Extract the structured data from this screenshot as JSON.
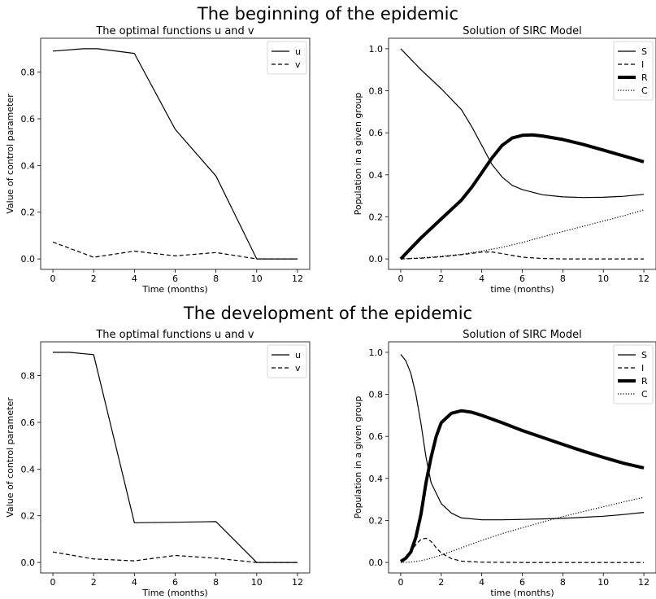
{
  "suptitles": [
    "The beginning of the epidemic",
    "The development of the epidemic"
  ],
  "chart_data": [
    {
      "type": "line",
      "title": "The optimal functions u and v",
      "xlabel": "Time (months)",
      "ylabel": "Value of control parameter",
      "xlim": [
        -0.6,
        12.6
      ],
      "ylim": [
        -0.045,
        0.945
      ],
      "xticks": [
        0,
        2,
        4,
        6,
        8,
        10,
        12
      ],
      "yticks": [
        0.0,
        0.2,
        0.4,
        0.6,
        0.8
      ],
      "legend_position": "top-right",
      "grid": false,
      "series": [
        {
          "name": "u",
          "style": "solid",
          "width": 1.2,
          "x": [
            0,
            1.5,
            2.2,
            4,
            6,
            8,
            10,
            11,
            12
          ],
          "y": [
            0.89,
            0.9,
            0.9,
            0.88,
            0.555,
            0.355,
            0.0,
            0.0,
            0.0
          ]
        },
        {
          "name": "v",
          "style": "dashed",
          "width": 1.2,
          "x": [
            0,
            2,
            4,
            6,
            8,
            10,
            12
          ],
          "y": [
            0.072,
            0.007,
            0.033,
            0.013,
            0.027,
            0.0,
            0.0
          ]
        }
      ]
    },
    {
      "type": "line",
      "title": "Solution of SIRC Model",
      "xlabel": "time (months)",
      "ylabel": "Population in a given group",
      "xlim": [
        -0.6,
        12.6
      ],
      "ylim": [
        -0.05,
        1.05
      ],
      "xticks": [
        0,
        2,
        4,
        6,
        8,
        10,
        12
      ],
      "yticks": [
        0.0,
        0.2,
        0.4,
        0.6,
        0.8,
        1.0
      ],
      "legend_position": "top-right",
      "grid": false,
      "series": [
        {
          "name": "S",
          "style": "solid",
          "width": 1.2,
          "x": [
            0,
            1,
            2,
            3,
            3.5,
            4,
            4.5,
            5,
            5.5,
            6,
            7,
            8,
            9,
            10,
            11,
            12
          ],
          "y": [
            1.0,
            0.9,
            0.81,
            0.71,
            0.63,
            0.54,
            0.45,
            0.39,
            0.35,
            0.33,
            0.305,
            0.295,
            0.292,
            0.293,
            0.298,
            0.307
          ]
        },
        {
          "name": "I",
          "style": "dashed",
          "width": 1.2,
          "x": [
            0,
            1,
            2,
            3,
            4,
            4.5,
            5,
            6,
            7,
            8,
            10,
            12
          ],
          "y": [
            0.0,
            0.003,
            0.01,
            0.02,
            0.032,
            0.033,
            0.025,
            0.008,
            0.002,
            0.0,
            0.0,
            0.0
          ]
        },
        {
          "name": "R",
          "style": "solid",
          "width": 4,
          "x": [
            0,
            1,
            2,
            3,
            3.5,
            4,
            4.5,
            5,
            5.5,
            6,
            6.5,
            7,
            8,
            9,
            10,
            11,
            12
          ],
          "y": [
            0.0,
            0.1,
            0.19,
            0.28,
            0.34,
            0.41,
            0.48,
            0.54,
            0.575,
            0.588,
            0.59,
            0.585,
            0.568,
            0.545,
            0.518,
            0.49,
            0.462
          ]
        },
        {
          "name": "C",
          "style": "dotted",
          "width": 1.2,
          "x": [
            0,
            1,
            2,
            3,
            4,
            5,
            6,
            7,
            8,
            9,
            10,
            11,
            12
          ],
          "y": [
            0.0,
            0.005,
            0.012,
            0.022,
            0.037,
            0.055,
            0.078,
            0.105,
            0.13,
            0.155,
            0.18,
            0.205,
            0.233
          ]
        }
      ]
    },
    {
      "type": "line",
      "title": "The optimal functions u and v",
      "xlabel": "Time (months)",
      "ylabel": "Value of control parameter",
      "xlim": [
        -0.6,
        12.6
      ],
      "ylim": [
        -0.045,
        0.945
      ],
      "xticks": [
        0,
        2,
        4,
        6,
        8,
        10,
        12
      ],
      "yticks": [
        0.0,
        0.2,
        0.4,
        0.6,
        0.8
      ],
      "legend_position": "top-right",
      "grid": false,
      "series": [
        {
          "name": "u",
          "style": "solid",
          "width": 1.2,
          "x": [
            0,
            0.8,
            2,
            4,
            6,
            8,
            10,
            11,
            12
          ],
          "y": [
            0.9,
            0.9,
            0.89,
            0.17,
            0.172,
            0.175,
            0.0,
            0.0,
            0.0
          ]
        },
        {
          "name": "v",
          "style": "dashed",
          "width": 1.2,
          "x": [
            0,
            2,
            4,
            6,
            8,
            10,
            12
          ],
          "y": [
            0.045,
            0.015,
            0.007,
            0.03,
            0.018,
            0.0,
            0.0
          ]
        }
      ]
    },
    {
      "type": "line",
      "title": "Solution of SIRC Model",
      "xlabel": "time (months)",
      "ylabel": "Population in a given group",
      "xlim": [
        -0.6,
        12.6
      ],
      "ylim": [
        -0.05,
        1.05
      ],
      "xticks": [
        0,
        2,
        4,
        6,
        8,
        10,
        12
      ],
      "yticks": [
        0.0,
        0.2,
        0.4,
        0.6,
        0.8,
        1.0
      ],
      "legend_position": "top-right",
      "grid": false,
      "series": [
        {
          "name": "S",
          "style": "solid",
          "width": 1.2,
          "x": [
            0,
            0.25,
            0.5,
            0.75,
            1,
            1.25,
            1.5,
            2,
            2.5,
            3,
            4,
            5,
            6,
            7,
            8,
            9,
            10,
            11,
            12
          ],
          "y": [
            0.99,
            0.96,
            0.9,
            0.8,
            0.66,
            0.5,
            0.38,
            0.28,
            0.235,
            0.212,
            0.203,
            0.203,
            0.205,
            0.207,
            0.21,
            0.215,
            0.22,
            0.228,
            0.238
          ]
        },
        {
          "name": "I",
          "style": "dashed",
          "width": 1.2,
          "x": [
            0,
            0.25,
            0.5,
            0.75,
            1,
            1.25,
            1.5,
            1.75,
            2,
            2.5,
            3,
            4,
            6,
            8,
            10,
            12
          ],
          "y": [
            0.005,
            0.02,
            0.05,
            0.085,
            0.11,
            0.115,
            0.1,
            0.07,
            0.045,
            0.018,
            0.006,
            0.001,
            0.0,
            0.0,
            0.0,
            0.0
          ]
        },
        {
          "name": "R",
          "style": "solid",
          "width": 4,
          "x": [
            0,
            0.25,
            0.5,
            0.75,
            1,
            1.25,
            1.5,
            1.75,
            2,
            2.5,
            3,
            3.5,
            4,
            5,
            6,
            7,
            8,
            9,
            10,
            11,
            12
          ],
          "y": [
            0.005,
            0.02,
            0.05,
            0.12,
            0.23,
            0.38,
            0.5,
            0.6,
            0.665,
            0.71,
            0.722,
            0.715,
            0.7,
            0.665,
            0.628,
            0.595,
            0.562,
            0.53,
            0.5,
            0.472,
            0.45
          ]
        },
        {
          "name": "C",
          "style": "dotted",
          "width": 1.2,
          "x": [
            0,
            0.5,
            1,
            1.5,
            2,
            3,
            4,
            5,
            6,
            7,
            8,
            9,
            10,
            11,
            12
          ],
          "y": [
            0.0,
            0.002,
            0.008,
            0.02,
            0.035,
            0.07,
            0.105,
            0.137,
            0.165,
            0.192,
            0.218,
            0.242,
            0.265,
            0.288,
            0.31
          ]
        }
      ]
    }
  ]
}
